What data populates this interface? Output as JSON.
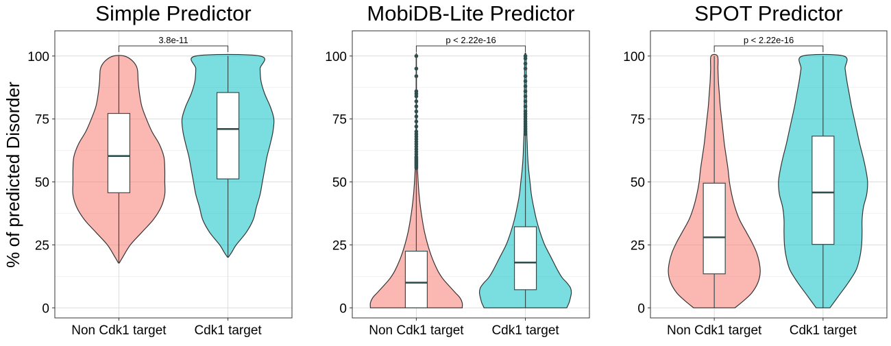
{
  "figure": {
    "ylabel": "% of predicted Disorder"
  },
  "chart_data": [
    {
      "type": "violin",
      "title": "Simple Predictor",
      "xlabel": "",
      "ylabel": "% of predicted Disorder",
      "categories": [
        "Non Cdk1 target",
        "Cdk1 target"
      ],
      "ylim": [
        -4,
        110
      ],
      "yticks": [
        0,
        25,
        50,
        75,
        100
      ],
      "grid": true,
      "colors": [
        "#F8766D",
        "#00BFC4"
      ],
      "comparison": {
        "label": "3.8e-11",
        "y": 104
      },
      "groups": [
        {
          "name": "Non Cdk1 target",
          "box": {
            "q1": 45.7,
            "median": 60.3,
            "q3": 77.2,
            "whisker_low": 17.8,
            "whisker_high": 100
          },
          "outliers": [],
          "violin_profile": [
            [
              17.8,
              0.01
            ],
            [
              20,
              0.08
            ],
            [
              25,
              0.25
            ],
            [
              30,
              0.5
            ],
            [
              35,
              0.75
            ],
            [
              40,
              0.92
            ],
            [
              45,
              1.0
            ],
            [
              50,
              1.0
            ],
            [
              55,
              1.0
            ],
            [
              60,
              0.98
            ],
            [
              65,
              0.88
            ],
            [
              70,
              0.72
            ],
            [
              75,
              0.6
            ],
            [
              80,
              0.5
            ],
            [
              85,
              0.45
            ],
            [
              90,
              0.42
            ],
            [
              95,
              0.4
            ],
            [
              98,
              0.3
            ],
            [
              100,
              0.12
            ]
          ]
        },
        {
          "name": "Cdk1 target",
          "box": {
            "q1": 51.2,
            "median": 71.0,
            "q3": 85.5,
            "whisker_low": 20.1,
            "whisker_high": 100
          },
          "outliers": [],
          "violin_profile": [
            [
              20.1,
              0.01
            ],
            [
              22,
              0.08
            ],
            [
              25,
              0.18
            ],
            [
              30,
              0.4
            ],
            [
              35,
              0.55
            ],
            [
              40,
              0.62
            ],
            [
              45,
              0.7
            ],
            [
              50,
              0.75
            ],
            [
              55,
              0.8
            ],
            [
              60,
              0.85
            ],
            [
              65,
              0.92
            ],
            [
              70,
              0.98
            ],
            [
              75,
              1.0
            ],
            [
              80,
              0.92
            ],
            [
              85,
              0.8
            ],
            [
              90,
              0.72
            ],
            [
              95,
              0.7
            ],
            [
              100,
              0.7
            ]
          ]
        }
      ]
    },
    {
      "type": "violin",
      "title": "MobiDB-Lite Predictor",
      "xlabel": "",
      "ylabel": "",
      "categories": [
        "Non Cdk1 target",
        "Cdk1 target"
      ],
      "ylim": [
        -4,
        110
      ],
      "yticks": [
        0,
        25,
        50,
        75,
        100
      ],
      "grid": true,
      "colors": [
        "#F8766D",
        "#00BFC4"
      ],
      "comparison": {
        "label": "p < 2.22e-16",
        "y": 104
      },
      "groups": [
        {
          "name": "Non Cdk1 target",
          "box": {
            "q1": 0,
            "median": 10.0,
            "q3": 22.5,
            "whisker_low": 0,
            "whisker_high": 55.0
          },
          "outliers": [
            55.5,
            56,
            56.5,
            57,
            57.5,
            58,
            58.5,
            59,
            59.5,
            60,
            61,
            62,
            63,
            64,
            65,
            66,
            67,
            68,
            69,
            70,
            72,
            74,
            76,
            78,
            80,
            82,
            84,
            85,
            86,
            92,
            95,
            100
          ],
          "violin_profile": [
            [
              0,
              1.0
            ],
            [
              2,
              1.0
            ],
            [
              4,
              0.95
            ],
            [
              6,
              0.85
            ],
            [
              8,
              0.75
            ],
            [
              10,
              0.65
            ],
            [
              12,
              0.56
            ],
            [
              15,
              0.46
            ],
            [
              20,
              0.34
            ],
            [
              25,
              0.25
            ],
            [
              30,
              0.18
            ],
            [
              35,
              0.13
            ],
            [
              40,
              0.09
            ],
            [
              45,
              0.06
            ],
            [
              50,
              0.04
            ],
            [
              55,
              0.025
            ],
            [
              60,
              0.015
            ],
            [
              70,
              0.008
            ],
            [
              80,
              0.005
            ],
            [
              90,
              0.004
            ],
            [
              100,
              0.003
            ]
          ]
        },
        {
          "name": "Cdk1 target",
          "box": {
            "q1": 7.2,
            "median": 18.0,
            "q3": 32.2,
            "whisker_low": 0,
            "whisker_high": 68.5
          },
          "outliers": [
            69,
            70,
            71,
            72,
            73,
            74,
            75,
            76,
            77,
            78,
            80,
            82,
            84,
            86,
            88,
            90,
            92,
            95,
            97,
            99,
            100
          ],
          "violin_profile": [
            [
              0,
              0.9
            ],
            [
              2,
              0.95
            ],
            [
              4,
              0.98
            ],
            [
              6,
              1.0
            ],
            [
              8,
              0.98
            ],
            [
              10,
              0.9
            ],
            [
              12,
              0.8
            ],
            [
              15,
              0.7
            ],
            [
              20,
              0.56
            ],
            [
              25,
              0.42
            ],
            [
              30,
              0.32
            ],
            [
              35,
              0.24
            ],
            [
              40,
              0.18
            ],
            [
              45,
              0.13
            ],
            [
              50,
              0.1
            ],
            [
              55,
              0.07
            ],
            [
              60,
              0.05
            ],
            [
              65,
              0.04
            ],
            [
              70,
              0.03
            ],
            [
              80,
              0.025
            ],
            [
              90,
              0.02
            ],
            [
              100,
              0.015
            ]
          ]
        }
      ]
    },
    {
      "type": "violin",
      "title": "SPOT Predictor",
      "xlabel": "",
      "ylabel": "",
      "categories": [
        "Non Cdk1 target",
        "Cdk1 target"
      ],
      "ylim": [
        -4,
        110
      ],
      "yticks": [
        0,
        25,
        50,
        75,
        100
      ],
      "grid": true,
      "colors": [
        "#F8766D",
        "#00BFC4"
      ],
      "comparison": {
        "label": "p < 2.22e-16",
        "y": 104
      },
      "groups": [
        {
          "name": "Non Cdk1 target",
          "box": {
            "q1": 13.5,
            "median": 28.0,
            "q3": 49.5,
            "whisker_low": 0,
            "whisker_high": 100
          },
          "outliers": [],
          "violin_profile": [
            [
              0,
              0.45
            ],
            [
              3,
              0.65
            ],
            [
              6,
              0.82
            ],
            [
              10,
              0.95
            ],
            [
              14,
              1.0
            ],
            [
              18,
              0.98
            ],
            [
              22,
              0.92
            ],
            [
              26,
              0.82
            ],
            [
              30,
              0.7
            ],
            [
              35,
              0.55
            ],
            [
              40,
              0.45
            ],
            [
              45,
              0.38
            ],
            [
              50,
              0.33
            ],
            [
              55,
              0.3
            ],
            [
              60,
              0.26
            ],
            [
              65,
              0.22
            ],
            [
              70,
              0.19
            ],
            [
              75,
              0.16
            ],
            [
              80,
              0.13
            ],
            [
              85,
              0.11
            ],
            [
              90,
              0.09
            ],
            [
              95,
              0.08
            ],
            [
              100,
              0.07
            ]
          ]
        },
        {
          "name": "Cdk1 target",
          "box": {
            "q1": 25.2,
            "median": 45.8,
            "q3": 68.2,
            "whisker_low": 0,
            "whisker_high": 100
          },
          "outliers": [],
          "violin_profile": [
            [
              0,
              0.15
            ],
            [
              5,
              0.35
            ],
            [
              10,
              0.55
            ],
            [
              15,
              0.72
            ],
            [
              20,
              0.8
            ],
            [
              25,
              0.84
            ],
            [
              30,
              0.85
            ],
            [
              35,
              0.85
            ],
            [
              40,
              0.88
            ],
            [
              45,
              0.95
            ],
            [
              50,
              0.97
            ],
            [
              55,
              0.93
            ],
            [
              60,
              0.87
            ],
            [
              65,
              0.8
            ],
            [
              70,
              0.74
            ],
            [
              75,
              0.68
            ],
            [
              80,
              0.62
            ],
            [
              85,
              0.57
            ],
            [
              90,
              0.52
            ],
            [
              95,
              0.48
            ],
            [
              100,
              0.45
            ]
          ]
        }
      ]
    }
  ]
}
